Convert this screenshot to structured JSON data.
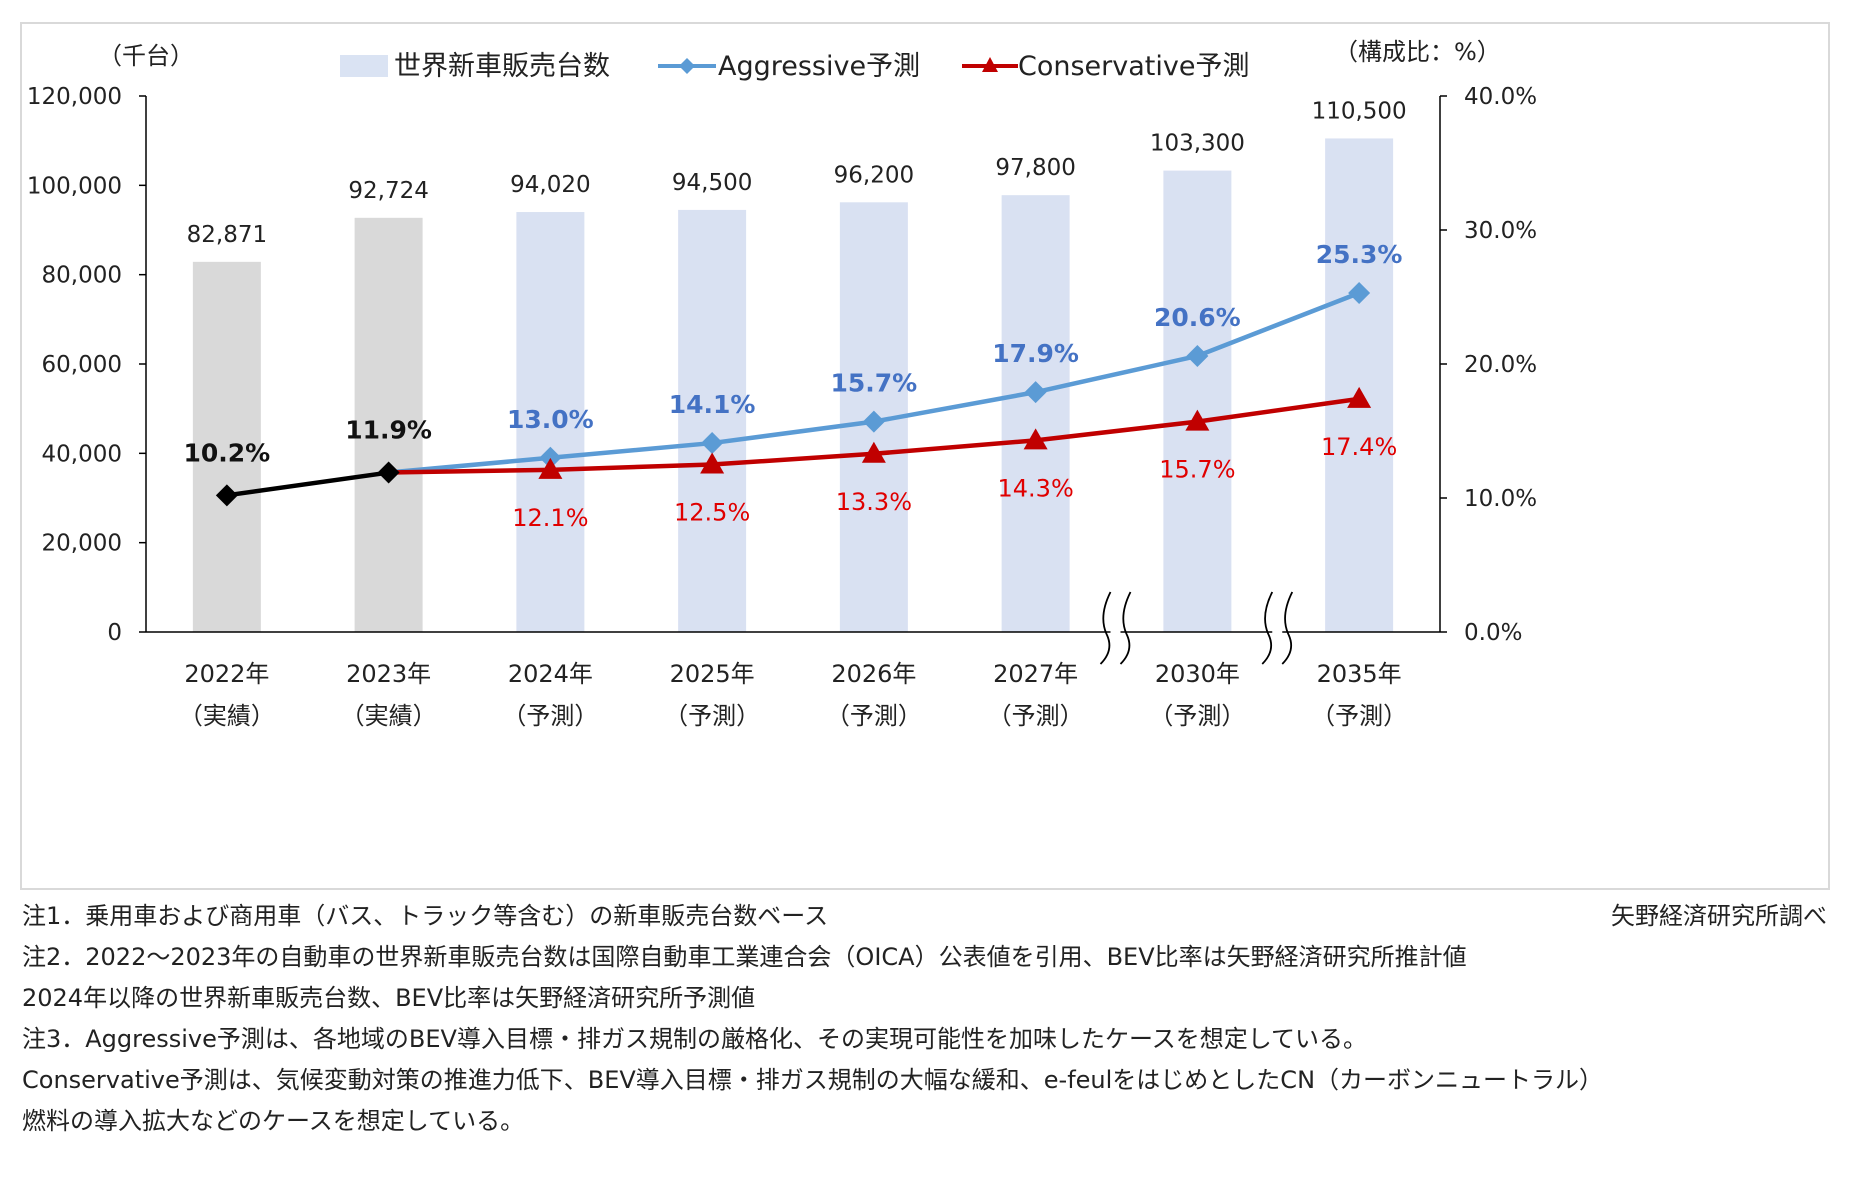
{
  "chart_data": {
    "type": "bar+line",
    "left_axis_unit": "（千台）",
    "right_axis_unit": "（構成比：%）",
    "left_axis_ticks": [
      "0",
      "20,000",
      "40,000",
      "60,000",
      "80,000",
      "100,000",
      "120,000"
    ],
    "right_axis_ticks": [
      "0.0%",
      "10.0%",
      "20.0%",
      "30.0%",
      "40.0%"
    ],
    "ylim_left": [
      0,
      120000
    ],
    "ylim_right": [
      0,
      40
    ],
    "categories": [
      {
        "year": "2022年",
        "note": "（実績）"
      },
      {
        "year": "2023年",
        "note": "（実績）"
      },
      {
        "year": "2024年",
        "note": "（予測）"
      },
      {
        "year": "2025年",
        "note": "（予測）"
      },
      {
        "year": "2026年",
        "note": "（予測）"
      },
      {
        "year": "2027年",
        "note": "（予測）"
      },
      {
        "year": "2030年",
        "note": "（予測）"
      },
      {
        "year": "2035年",
        "note": "（予測）"
      }
    ],
    "bars": {
      "name": "世界新車販売台数",
      "values": [
        82871,
        92724,
        94020,
        94500,
        96200,
        97800,
        103300,
        110500
      ],
      "labels": [
        "82,871",
        "92,724",
        "94,020",
        "94,500",
        "96,200",
        "97,800",
        "103,300",
        "110,500"
      ],
      "actual_color": "#d9d9d9",
      "forecast_color": "#d9e1f2",
      "legend_color": "#dae3f3"
    },
    "actual_line": {
      "values": [
        10.2,
        11.9
      ],
      "labels": [
        "10.2%",
        "11.9%"
      ],
      "color": "#000000"
    },
    "series": [
      {
        "name": "Aggressive予測",
        "marker": "diamond",
        "color": "#5b9bd5",
        "label_color": "#4472c4",
        "values": [
          null,
          11.9,
          13.0,
          14.1,
          15.7,
          17.9,
          20.6,
          25.3
        ],
        "labels": [
          "",
          "",
          "13.0%",
          "14.1%",
          "15.7%",
          "17.9%",
          "20.6%",
          "25.3%"
        ]
      },
      {
        "name": "Conservative予測",
        "marker": "triangle",
        "color": "#c00000",
        "label_color": "#e00000",
        "values": [
          null,
          11.9,
          12.1,
          12.5,
          13.3,
          14.3,
          15.7,
          17.4
        ],
        "labels": [
          "",
          "",
          "12.1%",
          "12.5%",
          "13.3%",
          "14.3%",
          "15.7%",
          "17.4%"
        ]
      }
    ],
    "axis_breaks_before": [
      6,
      7
    ],
    "legend_position": "top-center",
    "grid": false
  },
  "notes": [
    "注1．乗用車および商用車（バス、トラック等含む）の新車販売台数ベース",
    "注2．2022～2023年の自動車の世界新車販売台数は国際自動車工業連合会（OICA）公表値を引用、BEV比率は矢野経済研究所推計値",
    "2024年以降の世界新車販売台数、BEV比率は矢野経済研究所予測値",
    "注3．Aggressive予測は、各地域のBEV導入目標・排ガス規制の厳格化、その実現可能性を加味したケースを想定している。",
    "Conservative予測は、気候変動対策の推進力低下、BEV導入目標・排ガス規制の大幅な緩和、e-feulをはじめとしたCN（カーボンニュートラル）",
    "燃料の導入拡大などのケースを想定している。"
  ],
  "source": "矢野経済研究所調べ"
}
